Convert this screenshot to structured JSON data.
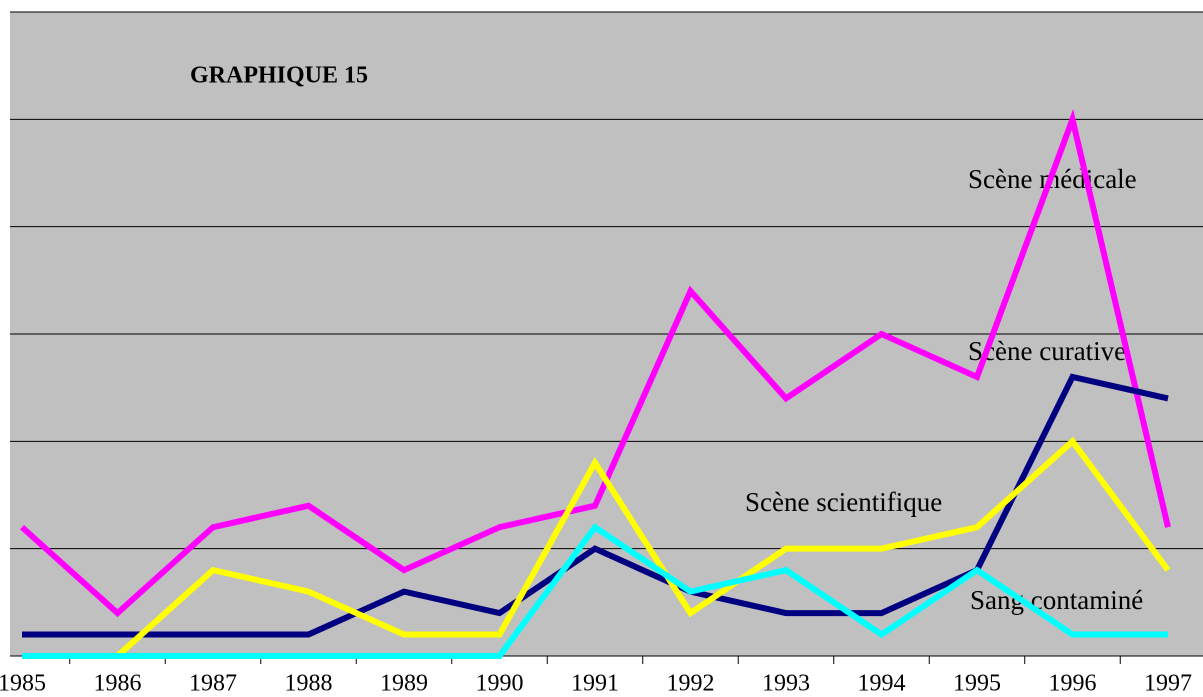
{
  "chart_data": {
    "type": "line",
    "title": "GRAPHIQUE 15",
    "categories": [
      "1985",
      "1986",
      "1987",
      "1988",
      "1989",
      "1990",
      "1991",
      "1992",
      "1993",
      "1994",
      "1995",
      "1996",
      "1997"
    ],
    "ylim": [
      0,
      30
    ],
    "yticks": [
      0,
      5,
      10,
      15,
      20,
      25,
      30
    ],
    "grid": true,
    "series": [
      {
        "name": "Scène médicale",
        "color": "#ff00ff",
        "values": [
          6,
          2,
          6,
          7,
          4,
          6,
          7,
          17,
          12,
          15,
          13,
          25,
          6
        ]
      },
      {
        "name": "Scène curative",
        "color": "#000080",
        "values": [
          1,
          1,
          1,
          1,
          3,
          2,
          5,
          3,
          2,
          2,
          4,
          13,
          12
        ]
      },
      {
        "name": "Scène scientifique",
        "color": "#ffff00",
        "values": [
          0,
          0,
          4,
          3,
          1,
          1,
          9,
          2,
          5,
          5,
          6,
          10,
          4
        ]
      },
      {
        "name": "Sang contaminé",
        "color": "#00ffff",
        "values": [
          0,
          0,
          0,
          0,
          0,
          0,
          6,
          3,
          4,
          1,
          4,
          1,
          1
        ]
      }
    ]
  }
}
